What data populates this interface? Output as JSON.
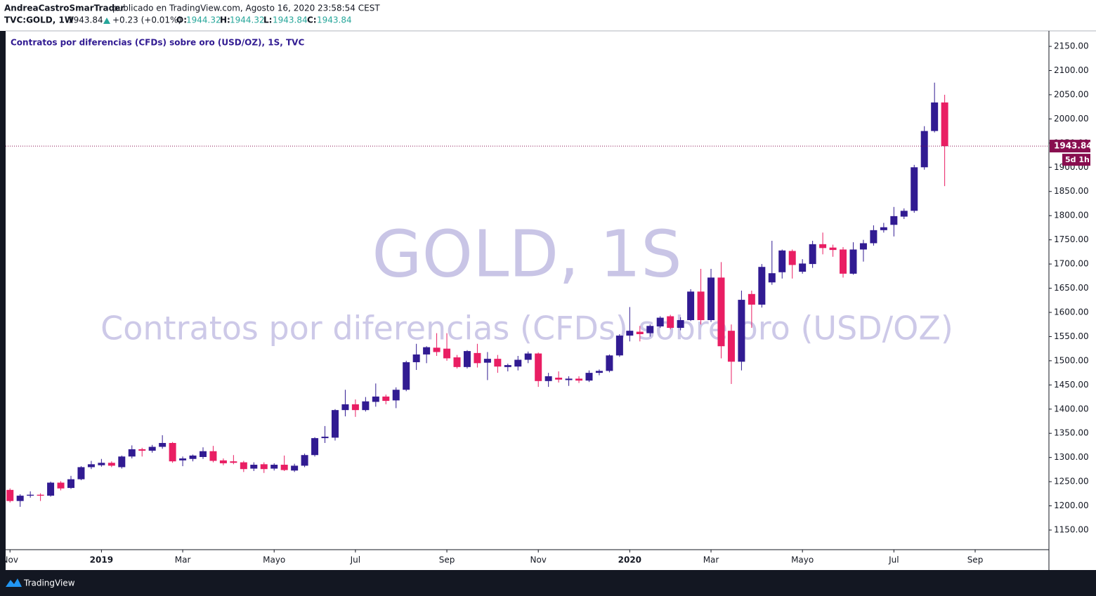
{
  "header": {
    "author": "AndreaCastroSmarTrader",
    "published": "publicado en TradingView.com, Agosto 16, 2020 23:58:54 CEST",
    "symbol": "TVC:GOLD, 1W",
    "last": 1943.84,
    "change": "+0.23 (+0.01%)",
    "open_label": "O:",
    "open": 1944.32,
    "high_label": "H:",
    "high": 1944.32,
    "low_label": "L:",
    "low": 1943.84,
    "close_label": "C:",
    "close": 1943.84
  },
  "footer": {
    "brand": "TradingView"
  },
  "chart_data": {
    "type": "candlestick",
    "title": "Contratos por diferencias (CFDs) sobre oro (USD/OZ), 1S, TVC",
    "watermark": "GOLD, 1S",
    "watermark_subtitle": "Contratos por diferencias (CFDs) sobre oro (USD/OZ)",
    "up_color": "#311b92",
    "down_color": "#e91e63",
    "last_price": 1943.84,
    "last_price_color": "#880e4f",
    "countdown": "5d 1h",
    "ylim": [
      1109.4,
      2182
    ],
    "yticks": [
      {
        "value": 1150,
        "label": "1150.00"
      },
      {
        "value": 1200,
        "label": "1200.00"
      },
      {
        "value": 1250,
        "label": "1250.00"
      },
      {
        "value": 1300,
        "label": "1300.00"
      },
      {
        "value": 1350,
        "label": "1350.00"
      },
      {
        "value": 1400,
        "label": "1400.00"
      },
      {
        "value": 1450,
        "label": "1450.00"
      },
      {
        "value": 1500,
        "label": "1500.00"
      },
      {
        "value": 1550,
        "label": "1550.00"
      },
      {
        "value": 1600,
        "label": "1600.00"
      },
      {
        "value": 1650,
        "label": "1650.00"
      },
      {
        "value": 1700,
        "label": "1700.00"
      },
      {
        "value": 1750,
        "label": "1750.00"
      },
      {
        "value": 1800,
        "label": "1800.00"
      },
      {
        "value": 1850,
        "label": "1850.00"
      },
      {
        "value": 1900,
        "label": "1900.00"
      },
      {
        "value": 1950,
        "label": "1950.00"
      },
      {
        "value": 2000,
        "label": "2000.00"
      },
      {
        "value": 2050,
        "label": "2050.00"
      },
      {
        "value": 2100,
        "label": "2100.00"
      },
      {
        "value": 2150,
        "label": "2150.00"
      }
    ],
    "categories": [
      "Nov",
      null,
      null,
      null,
      null,
      null,
      null,
      null,
      null,
      "2019",
      null,
      null,
      null,
      null,
      null,
      null,
      null,
      "Mar",
      null,
      null,
      null,
      null,
      null,
      null,
      null,
      null,
      "Mayo",
      null,
      null,
      null,
      null,
      null,
      null,
      null,
      "Jul",
      null,
      null,
      null,
      null,
      null,
      null,
      null,
      null,
      "Sep",
      null,
      null,
      null,
      null,
      null,
      null,
      null,
      null,
      "Nov",
      null,
      null,
      null,
      null,
      null,
      null,
      null,
      null,
      "2020",
      null,
      null,
      null,
      null,
      null,
      null,
      null,
      "Mar",
      null,
      null,
      null,
      null,
      null,
      null,
      null,
      null,
      "Mayo",
      null,
      null,
      null,
      null,
      null,
      null,
      null,
      null,
      "Jul",
      null,
      null,
      null,
      null,
      null,
      null,
      null,
      "Sep",
      null,
      null,
      null,
      null,
      null,
      null
    ],
    "open": [
      1233,
      1210,
      1221,
      1223,
      1221,
      1248,
      1237,
      1255,
      1280,
      1284,
      1289,
      1280,
      1302,
      1317,
      1314,
      1322,
      1330,
      1294,
      1297,
      1301,
      1313,
      1294,
      1292,
      1290,
      1277,
      1286,
      1277,
      1285,
      1273,
      1283,
      1305,
      1340,
      1341,
      1398,
      1410,
      1398,
      1415,
      1426,
      1418,
      1440,
      1497,
      1513,
      1527,
      1525,
      1507,
      1487,
      1516,
      1496,
      1504,
      1487,
      1488,
      1502,
      1515,
      1458,
      1465,
      1460,
      1463,
      1459,
      1475,
      1479,
      1511,
      1552,
      1560,
      1557,
      1571,
      1592,
      1568,
      1584,
      1643,
      1584,
      1672,
      1562,
      1498,
      1638,
      1616,
      1662,
      1683,
      1727,
      1684,
      1700,
      1741,
      1734,
      1730,
      1680,
      1730,
      1743,
      1770,
      1781,
      1798,
      1810,
      1900,
      1975,
      2034,
      null,
      null,
      null,
      null,
      null,
      null,
      null,
      null,
      null
    ],
    "high": [
      1236,
      1224,
      1230,
      1226,
      1250,
      1251,
      1262,
      1282,
      1293,
      1297,
      1292,
      1304,
      1325,
      1320,
      1326,
      1346,
      1332,
      1302,
      1306,
      1321,
      1324,
      1298,
      1305,
      1293,
      1290,
      1290,
      1288,
      1304,
      1287,
      1308,
      1342,
      1365,
      1400,
      1440,
      1420,
      1425,
      1453,
      1430,
      1445,
      1500,
      1535,
      1530,
      1557,
      1557,
      1512,
      1522,
      1535,
      1518,
      1512,
      1494,
      1510,
      1519,
      1517,
      1475,
      1478,
      1468,
      1468,
      1480,
      1482,
      1513,
      1555,
      1611,
      1572,
      1575,
      1592,
      1595,
      1590,
      1648,
      1690,
      1690,
      1704,
      1575,
      1645,
      1645,
      1700,
      1748,
      1730,
      1730,
      1710,
      1748,
      1765,
      1740,
      1735,
      1745,
      1750,
      1780,
      1785,
      1818,
      1815,
      1905,
      1985,
      2075,
      2050,
      null,
      null,
      null,
      null,
      null,
      null,
      null,
      null,
      null
    ],
    "low": [
      1207,
      1198,
      1217,
      1210,
      1219,
      1232,
      1235,
      1253,
      1276,
      1281,
      1280,
      1277,
      1298,
      1302,
      1310,
      1318,
      1289,
      1282,
      1292,
      1297,
      1290,
      1284,
      1286,
      1270,
      1272,
      1268,
      1273,
      1272,
      1270,
      1280,
      1302,
      1330,
      1335,
      1385,
      1384,
      1395,
      1405,
      1410,
      1402,
      1437,
      1481,
      1495,
      1510,
      1500,
      1484,
      1484,
      1486,
      1460,
      1475,
      1478,
      1480,
      1495,
      1446,
      1446,
      1455,
      1448,
      1454,
      1456,
      1470,
      1476,
      1508,
      1540,
      1540,
      1550,
      1568,
      1565,
      1563,
      1582,
      1575,
      1580,
      1505,
      1452,
      1480,
      1568,
      1610,
      1657,
      1670,
      1670,
      1680,
      1692,
      1720,
      1715,
      1672,
      1678,
      1705,
      1738,
      1765,
      1757,
      1793,
      1806,
      1895,
      1972,
      1861,
      null,
      null,
      null,
      null,
      null,
      null,
      null,
      null,
      null
    ],
    "close": [
      1210,
      1221,
      1223,
      1221,
      1248,
      1236,
      1255,
      1280,
      1286,
      1289,
      1283,
      1302,
      1317,
      1314,
      1322,
      1330,
      1292,
      1298,
      1304,
      1313,
      1293,
      1288,
      1289,
      1276,
      1285,
      1276,
      1285,
      1274,
      1283,
      1305,
      1340,
      1343,
      1398,
      1410,
      1398,
      1416,
      1426,
      1417,
      1440,
      1497,
      1513,
      1528,
      1518,
      1505,
      1487,
      1520,
      1495,
      1504,
      1488,
      1491,
      1502,
      1515,
      1458,
      1468,
      1461,
      1463,
      1459,
      1475,
      1479,
      1511,
      1552,
      1562,
      1555,
      1572,
      1589,
      1568,
      1584,
      1643,
      1584,
      1672,
      1530,
      1498,
      1626,
      1616,
      1694,
      1681,
      1728,
      1698,
      1701,
      1741,
      1733,
      1729,
      1680,
      1730,
      1743,
      1770,
      1776,
      1799,
      1810,
      1900,
      1975,
      2034,
      1943.84,
      null,
      null,
      null,
      null,
      null,
      null,
      null,
      null,
      null
    ]
  }
}
